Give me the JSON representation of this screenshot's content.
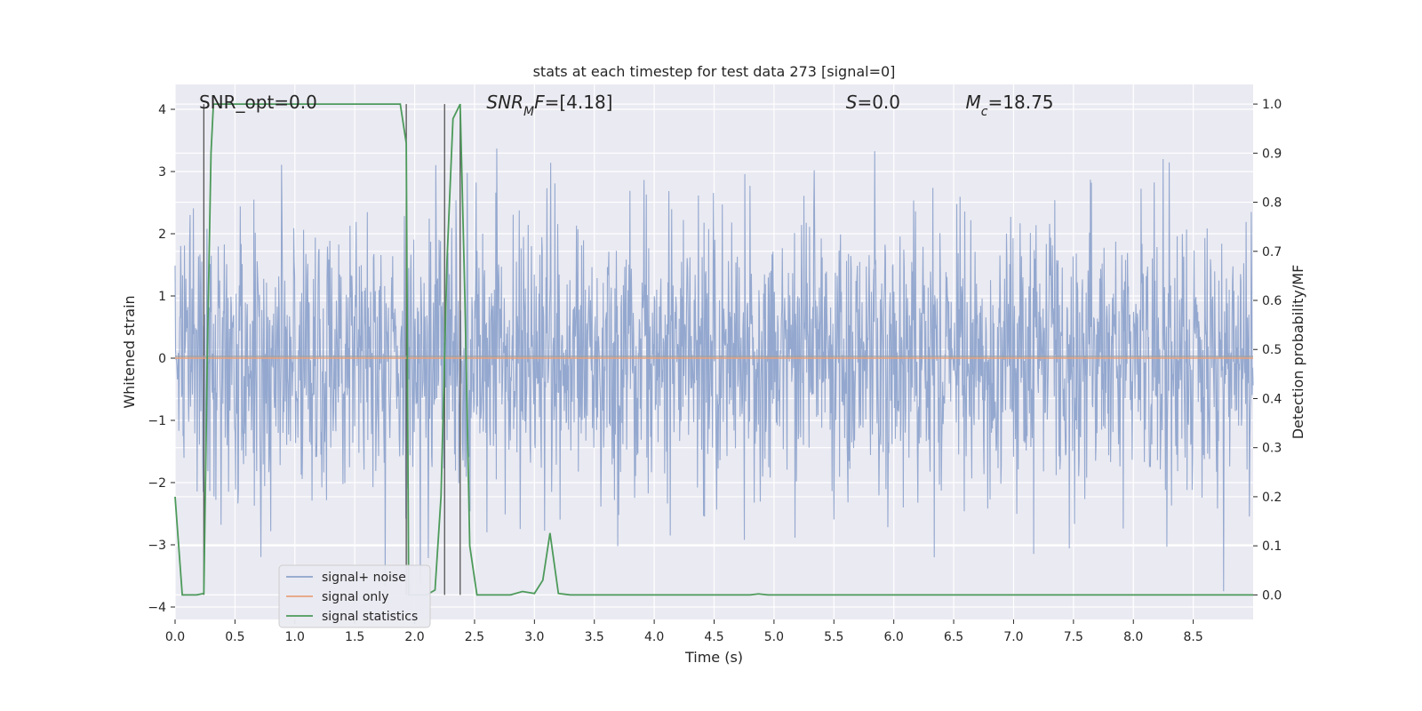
{
  "chart_data": {
    "type": "line",
    "title": "stats at each timestep for test data 273 [signal=0]",
    "xlabel": "Time (s)",
    "ylabel": "Whitened strain",
    "y2label": "Detection probability/MF",
    "xlim": [
      0,
      9.0
    ],
    "ylim": [
      -4.2,
      4.4
    ],
    "y2lim": [
      -0.05,
      1.04
    ],
    "x_ticks": [
      0.0,
      0.5,
      1.0,
      1.5,
      2.0,
      2.5,
      3.0,
      3.5,
      4.0,
      4.5,
      5.0,
      5.5,
      6.0,
      6.5,
      7.0,
      7.5,
      8.0,
      8.5
    ],
    "x_tick_labels": [
      "0.0",
      "0.5",
      "1.0",
      "1.5",
      "2.0",
      "2.5",
      "3.0",
      "3.5",
      "4.0",
      "4.5",
      "5.0",
      "5.5",
      "6.0",
      "6.5",
      "7.0",
      "7.5",
      "8.0",
      "8.5"
    ],
    "y_ticks": [
      -4,
      -3,
      -2,
      -1,
      0,
      1,
      2,
      3,
      4
    ],
    "y_tick_labels": [
      "−4",
      "−3",
      "−2",
      "−1",
      "0",
      "1",
      "2",
      "3",
      "4"
    ],
    "y2_ticks": [
      0.0,
      0.1,
      0.2,
      0.3,
      0.4,
      0.5,
      0.6,
      0.7,
      0.8,
      0.9,
      1.0
    ],
    "y2_tick_labels": [
      "0.0",
      "0.1",
      "0.2",
      "0.3",
      "0.4",
      "0.5",
      "0.6",
      "0.7",
      "0.8",
      "0.9",
      "1.0"
    ],
    "grid": true,
    "legend_position": "lower-left",
    "annotations": [
      {
        "text": "SNR_opt=0.0",
        "x": 0.2
      },
      {
        "text": "SNR",
        "sub": "M",
        "suffix": "F=[4.18]",
        "x": 2.6
      },
      {
        "text": "S",
        "suffix": "=0.0",
        "x": 5.6
      },
      {
        "text": "M",
        "sub": "c",
        "suffix": "=18.75",
        "x": 6.6
      }
    ],
    "vertical_lines_x": [
      0.24,
      1.93,
      2.25,
      2.38
    ],
    "series": [
      {
        "name": "signal+ noise",
        "color": "#8fa4cc",
        "kind": "noise",
        "n_samples": 2300,
        "sigma": 1.05,
        "clip": [
          -3.85,
          4.0
        ]
      },
      {
        "name": "signal only",
        "color": "#e8a07c",
        "x": [
          0.0,
          9.0
        ],
        "y": [
          0.0,
          0.0
        ]
      },
      {
        "name": "signal statistics",
        "color": "#4c9a5a",
        "axis": "right",
        "x": [
          0.0,
          0.06,
          0.18,
          0.24,
          0.27,
          0.3,
          0.32,
          1.88,
          1.93,
          1.95,
          2.0,
          2.1,
          2.17,
          2.22,
          2.27,
          2.32,
          2.38,
          2.42,
          2.46,
          2.52,
          2.8,
          2.9,
          3.0,
          3.07,
          3.13,
          3.2,
          3.3,
          4.8,
          4.87,
          4.95,
          9.0
        ],
        "y": [
          0.2,
          0.0,
          0.0,
          0.003,
          0.5,
          0.9,
          1.0,
          1.0,
          0.92,
          0.0,
          0.0,
          0.0,
          0.01,
          0.2,
          0.68,
          0.97,
          1.0,
          0.6,
          0.1,
          0.0,
          0.0,
          0.007,
          0.003,
          0.03,
          0.126,
          0.003,
          0.0,
          0.0,
          0.002,
          0.0,
          0.0
        ]
      }
    ]
  }
}
